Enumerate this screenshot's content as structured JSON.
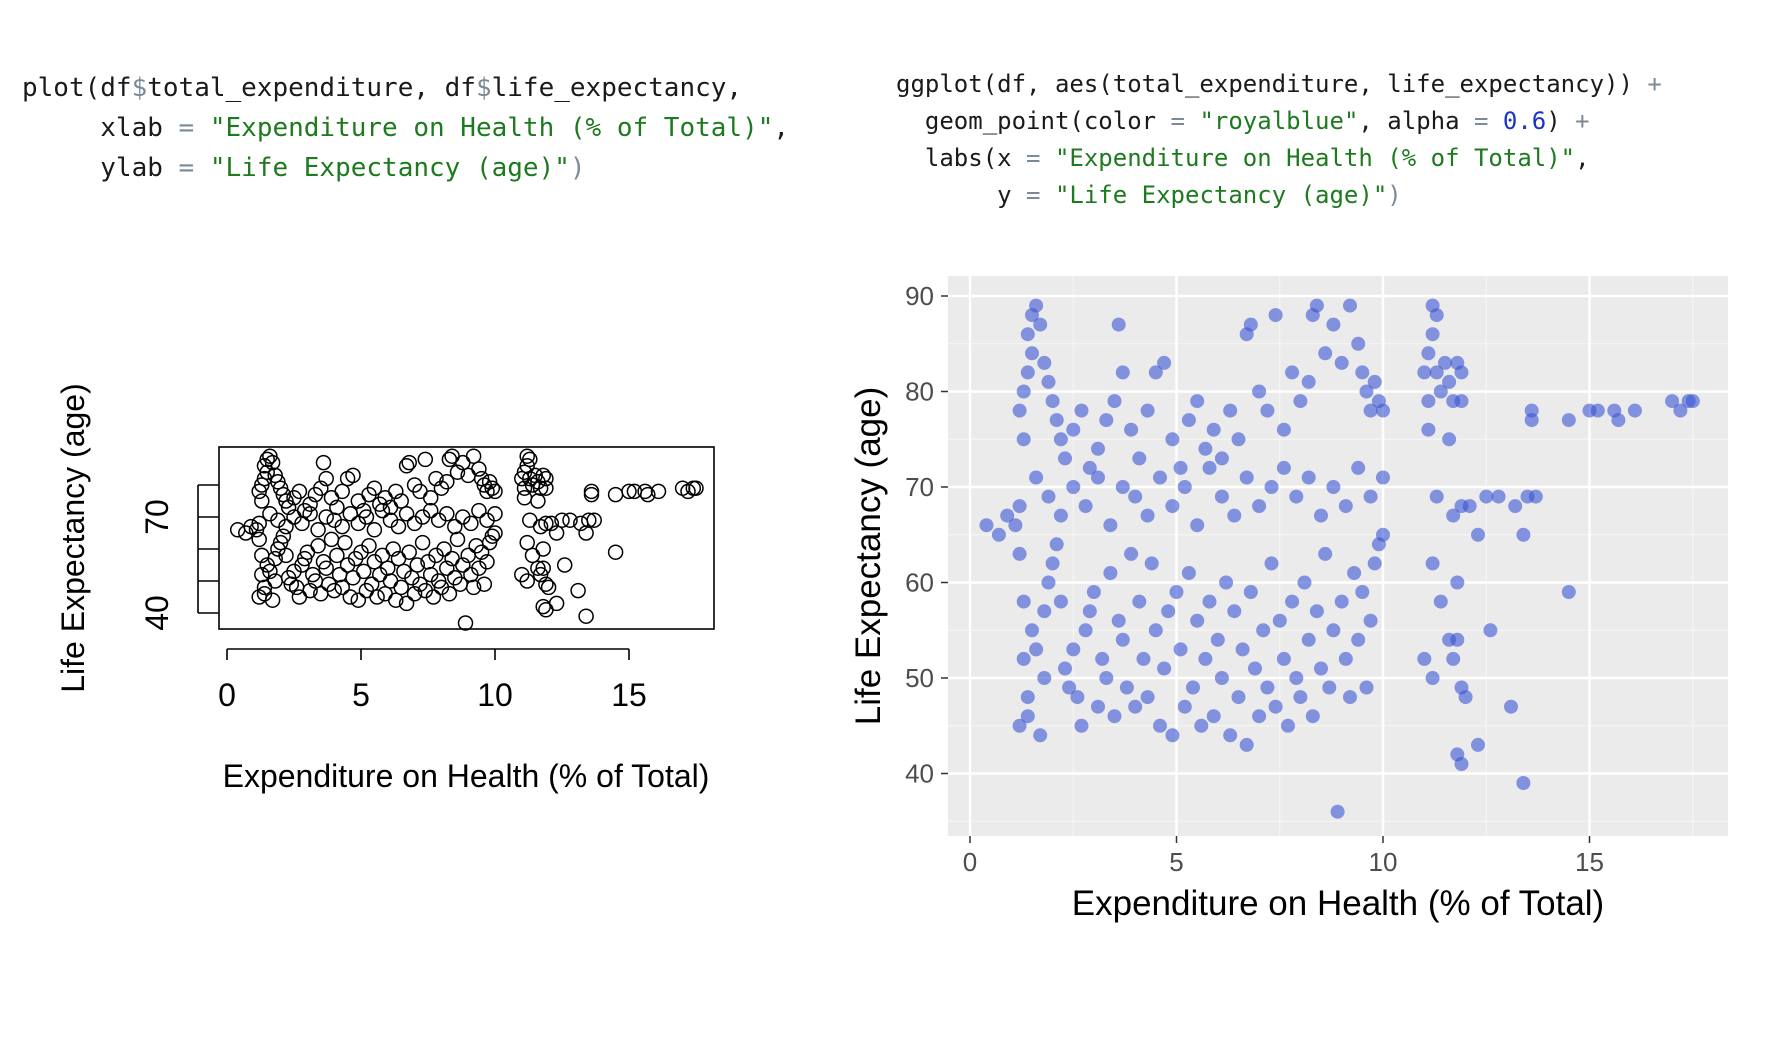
{
  "code_left": {
    "l1_fn": "plot(df",
    "l1_d1": "$",
    "l1_a": "total_expenditure, df",
    "l1_d2": "$",
    "l1_b": "life_expectancy,",
    "l2_key": "     xlab ",
    "l2_eq": "=",
    "l2_str": " \"Expenditure on Health (% of Total)\"",
    "l2_end": ",",
    "l3_key": "     ylab ",
    "l3_eq": "=",
    "l3_str": " \"Life Expectancy (age)\"",
    "l3_end": ")"
  },
  "code_right": {
    "l1_a": "ggplot(df, aes(total_expenditure, life_expectancy)) ",
    "l1_plus": "+",
    "l2_a": "  geom_point(color ",
    "l2_eq1": "=",
    "l2_str": " \"royalblue\"",
    "l2_b": ", alpha ",
    "l2_eq2": "=",
    "l2_num": " 0.6",
    "l2_c": ") ",
    "l2_plus": "+",
    "l3_a": "  labs(x ",
    "l3_eq": "=",
    "l3_str": " \"Expenditure on Health (% of Total)\"",
    "l3_end": ",",
    "l4_a": "       y ",
    "l4_eq": "=",
    "l4_str": " \"Life Expectancy (age)\"",
    "l4_end": ")"
  },
  "colors": {
    "royalblue": "#3a55d4",
    "ggplot_panel": "#ebebeb",
    "string_green": "#1e7a1e",
    "number_blue": "#1a33c8"
  },
  "chart_data": [
    {
      "type": "scatter",
      "library": "base R plot",
      "xlabel": "Expenditure on Health (% of Total)",
      "ylabel": "Life Expectancy (age)",
      "xlim": [
        0,
        18
      ],
      "ylim": [
        36,
        89
      ],
      "xticks": [
        "0",
        "5",
        "10",
        "15"
      ],
      "xtick_values": [
        0,
        5,
        10,
        15
      ],
      "yticks": [
        "40",
        "70"
      ],
      "ytick_values": [
        40,
        50,
        60,
        70,
        80
      ],
      "ytick_labeled": [
        40,
        70
      ],
      "marker": "open circle",
      "grid": false
    },
    {
      "type": "scatter",
      "library": "ggplot2",
      "xlabel": "Expenditure on Health (% of Total)",
      "ylabel": "Life Expectancy (age)",
      "xlim": [
        -0.5,
        18.5
      ],
      "ylim": [
        34,
        91
      ],
      "xticks": [
        "0",
        "5",
        "10",
        "15"
      ],
      "xtick_values": [
        0,
        5,
        10,
        15
      ],
      "yticks": [
        "40",
        "50",
        "60",
        "70",
        "80",
        "90"
      ],
      "ytick_values": [
        40,
        50,
        60,
        70,
        80,
        90
      ],
      "point_color": "royalblue",
      "alpha": 0.6,
      "grid": true,
      "points": [
        [
          0.4,
          66
        ],
        [
          0.7,
          65
        ],
        [
          0.9,
          67
        ],
        [
          1.1,
          66
        ],
        [
          1.2,
          68
        ],
        [
          1.2,
          63
        ],
        [
          1.3,
          58
        ],
        [
          1.3,
          52
        ],
        [
          1.2,
          45
        ],
        [
          1.4,
          46
        ],
        [
          1.4,
          48
        ],
        [
          1.5,
          55
        ],
        [
          1.6,
          53
        ],
        [
          1.7,
          44
        ],
        [
          1.8,
          50
        ],
        [
          1.8,
          57
        ],
        [
          1.9,
          60
        ],
        [
          2.0,
          62
        ],
        [
          2.1,
          64
        ],
        [
          2.2,
          58
        ],
        [
          2.3,
          51
        ],
        [
          2.4,
          49
        ],
        [
          2.5,
          53
        ],
        [
          2.6,
          48
        ],
        [
          2.7,
          45
        ],
        [
          2.8,
          55
        ],
        [
          2.9,
          57
        ],
        [
          3.0,
          59
        ],
        [
          3.1,
          47
        ],
        [
          3.2,
          52
        ],
        [
          3.3,
          50
        ],
        [
          3.4,
          61
        ],
        [
          3.5,
          46
        ],
        [
          3.6,
          56
        ],
        [
          3.7,
          54
        ],
        [
          3.8,
          49
        ],
        [
          3.9,
          63
        ],
        [
          4.0,
          47
        ],
        [
          4.1,
          58
        ],
        [
          4.2,
          52
        ],
        [
          4.3,
          48
        ],
        [
          4.4,
          62
        ],
        [
          4.5,
          55
        ],
        [
          4.6,
          45
        ],
        [
          4.7,
          51
        ],
        [
          4.8,
          57
        ],
        [
          4.9,
          44
        ],
        [
          5.0,
          59
        ],
        [
          5.1,
          53
        ],
        [
          5.2,
          47
        ],
        [
          5.3,
          61
        ],
        [
          5.4,
          49
        ],
        [
          5.5,
          56
        ],
        [
          5.6,
          45
        ],
        [
          5.7,
          52
        ],
        [
          5.8,
          58
        ],
        [
          5.9,
          46
        ],
        [
          6.0,
          54
        ],
        [
          6.1,
          50
        ],
        [
          6.2,
          60
        ],
        [
          6.3,
          44
        ],
        [
          6.4,
          57
        ],
        [
          6.5,
          48
        ],
        [
          6.6,
          53
        ],
        [
          6.7,
          43
        ],
        [
          6.8,
          59
        ],
        [
          6.9,
          51
        ],
        [
          7.0,
          46
        ],
        [
          7.1,
          55
        ],
        [
          7.2,
          49
        ],
        [
          7.3,
          62
        ],
        [
          7.4,
          47
        ],
        [
          7.5,
          56
        ],
        [
          7.6,
          52
        ],
        [
          7.7,
          45
        ],
        [
          7.8,
          58
        ],
        [
          7.9,
          50
        ],
        [
          8.0,
          48
        ],
        [
          8.1,
          60
        ],
        [
          8.2,
          54
        ],
        [
          8.3,
          46
        ],
        [
          8.4,
          57
        ],
        [
          8.5,
          51
        ],
        [
          8.6,
          63
        ],
        [
          8.7,
          49
        ],
        [
          8.8,
          55
        ],
        [
          8.9,
          36
        ],
        [
          9.0,
          58
        ],
        [
          9.1,
          52
        ],
        [
          9.2,
          48
        ],
        [
          9.3,
          61
        ],
        [
          9.4,
          54
        ],
        [
          9.5,
          59
        ],
        [
          9.6,
          49
        ],
        [
          9.7,
          56
        ],
        [
          9.8,
          62
        ],
        [
          9.9,
          64
        ],
        [
          10.0,
          65
        ],
        [
          1.2,
          78
        ],
        [
          1.3,
          80
        ],
        [
          1.4,
          82
        ],
        [
          1.5,
          84
        ],
        [
          1.4,
          86
        ],
        [
          1.5,
          88
        ],
        [
          1.6,
          89
        ],
        [
          1.7,
          87
        ],
        [
          1.8,
          83
        ],
        [
          1.9,
          81
        ],
        [
          2.0,
          79
        ],
        [
          2.1,
          77
        ],
        [
          2.2,
          75
        ],
        [
          2.3,
          73
        ],
        [
          2.5,
          76
        ],
        [
          2.7,
          78
        ],
        [
          2.9,
          72
        ],
        [
          3.1,
          74
        ],
        [
          3.3,
          77
        ],
        [
          3.5,
          79
        ],
        [
          3.6,
          87
        ],
        [
          3.7,
          82
        ],
        [
          3.9,
          76
        ],
        [
          4.1,
          73
        ],
        [
          4.3,
          78
        ],
        [
          4.5,
          82
        ],
        [
          4.7,
          83
        ],
        [
          4.9,
          75
        ],
        [
          5.1,
          72
        ],
        [
          5.3,
          77
        ],
        [
          5.5,
          79
        ],
        [
          5.7,
          74
        ],
        [
          5.9,
          76
        ],
        [
          6.1,
          73
        ],
        [
          6.3,
          78
        ],
        [
          6.5,
          75
        ],
        [
          6.7,
          86
        ],
        [
          6.8,
          87
        ],
        [
          7.0,
          80
        ],
        [
          7.2,
          78
        ],
        [
          7.4,
          88
        ],
        [
          7.6,
          76
        ],
        [
          7.8,
          82
        ],
        [
          8.0,
          79
        ],
        [
          8.2,
          81
        ],
        [
          8.3,
          88
        ],
        [
          8.4,
          89
        ],
        [
          8.6,
          84
        ],
        [
          8.8,
          87
        ],
        [
          9.0,
          83
        ],
        [
          9.2,
          89
        ],
        [
          9.4,
          85
        ],
        [
          9.5,
          82
        ],
        [
          9.6,
          80
        ],
        [
          9.7,
          78
        ],
        [
          9.8,
          81
        ],
        [
          9.9,
          79
        ],
        [
          10.0,
          78
        ],
        [
          1.3,
          75
        ],
        [
          1.6,
          71
        ],
        [
          1.9,
          69
        ],
        [
          2.2,
          67
        ],
        [
          2.5,
          70
        ],
        [
          2.8,
          68
        ],
        [
          3.1,
          71
        ],
        [
          3.4,
          66
        ],
        [
          3.7,
          70
        ],
        [
          4.0,
          69
        ],
        [
          4.3,
          67
        ],
        [
          4.6,
          71
        ],
        [
          4.9,
          68
        ],
        [
          5.2,
          70
        ],
        [
          5.5,
          66
        ],
        [
          5.8,
          72
        ],
        [
          6.1,
          69
        ],
        [
          6.4,
          67
        ],
        [
          6.7,
          71
        ],
        [
          7.0,
          68
        ],
        [
          7.3,
          70
        ],
        [
          7.6,
          72
        ],
        [
          7.9,
          69
        ],
        [
          8.2,
          71
        ],
        [
          8.5,
          67
        ],
        [
          8.8,
          70
        ],
        [
          9.1,
          68
        ],
        [
          9.4,
          72
        ],
        [
          9.7,
          69
        ],
        [
          10.0,
          71
        ],
        [
          11.0,
          82
        ],
        [
          11.1,
          84
        ],
        [
          11.2,
          86
        ],
        [
          11.2,
          89
        ],
        [
          11.3,
          88
        ],
        [
          11.3,
          82
        ],
        [
          11.4,
          80
        ],
        [
          11.5,
          83
        ],
        [
          11.6,
          81
        ],
        [
          11.7,
          79
        ],
        [
          11.8,
          83
        ],
        [
          11.9,
          82
        ],
        [
          11.9,
          79
        ],
        [
          11.1,
          79
        ],
        [
          11.1,
          76
        ],
        [
          11.6,
          75
        ],
        [
          11.3,
          69
        ],
        [
          11.7,
          67
        ],
        [
          11.9,
          68
        ],
        [
          12.1,
          68
        ],
        [
          12.3,
          65
        ],
        [
          12.5,
          69
        ],
        [
          12.8,
          69
        ],
        [
          13.2,
          68
        ],
        [
          13.5,
          69
        ],
        [
          13.7,
          69
        ],
        [
          13.4,
          65
        ],
        [
          11.2,
          62
        ],
        [
          11.4,
          58
        ],
        [
          11.6,
          54
        ],
        [
          11.8,
          54
        ],
        [
          11.8,
          60
        ],
        [
          11.7,
          52
        ],
        [
          11.0,
          52
        ],
        [
          11.2,
          50
        ],
        [
          11.9,
          49
        ],
        [
          12.0,
          48
        ],
        [
          12.6,
          55
        ],
        [
          13.1,
          47
        ],
        [
          12.3,
          43
        ],
        [
          11.8,
          42
        ],
        [
          11.9,
          41
        ],
        [
          13.4,
          39
        ],
        [
          14.5,
          59
        ],
        [
          13.6,
          78
        ],
        [
          13.6,
          77
        ],
        [
          14.5,
          77
        ],
        [
          15.0,
          78
        ],
        [
          15.2,
          78
        ],
        [
          15.6,
          78
        ],
        [
          15.7,
          77
        ],
        [
          16.1,
          78
        ],
        [
          17.0,
          79
        ],
        [
          17.2,
          78
        ],
        [
          17.4,
          79
        ],
        [
          17.5,
          79
        ]
      ]
    }
  ]
}
